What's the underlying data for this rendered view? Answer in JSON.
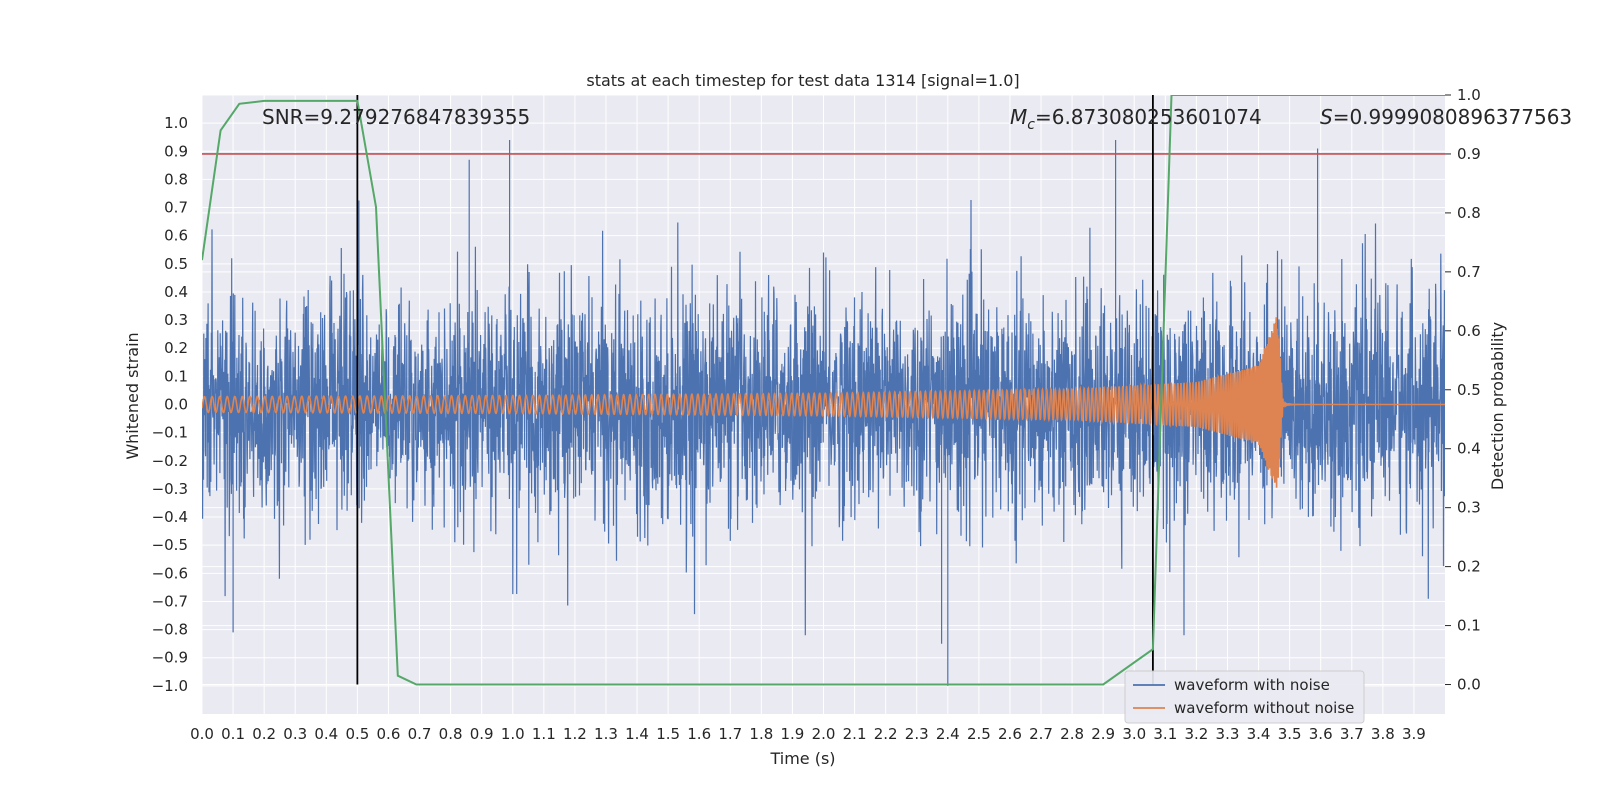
{
  "chart_data": {
    "type": "line",
    "title": "stats at each timestep for test data 1314 [signal=1.0]",
    "xlabel": "Time (s)",
    "ylabel": "Whitened strain",
    "ylabel_right": "Detection probability",
    "xlim": [
      0.0,
      4.0
    ],
    "ylim": [
      -1.1,
      1.1
    ],
    "ylim_right": [
      -0.05,
      1.0
    ],
    "x_ticks": [
      "0.0",
      "0.1",
      "0.2",
      "0.3",
      "0.4",
      "0.5",
      "0.6",
      "0.7",
      "0.8",
      "0.9",
      "1.0",
      "1.1",
      "1.2",
      "1.3",
      "1.4",
      "1.5",
      "1.6",
      "1.7",
      "1.8",
      "1.9",
      "2.0",
      "2.1",
      "2.2",
      "2.3",
      "2.4",
      "2.5",
      "2.6",
      "2.7",
      "2.8",
      "2.9",
      "3.0",
      "3.1",
      "3.2",
      "3.3",
      "3.4",
      "3.5",
      "3.6",
      "3.7",
      "3.8",
      "3.9"
    ],
    "y_ticks": [
      "1.0",
      "0.9",
      "0.8",
      "0.7",
      "0.6",
      "0.5",
      "0.4",
      "0.3",
      "0.2",
      "0.1",
      "0.0",
      "-0.1",
      "-0.2",
      "-0.3",
      "-0.4",
      "-0.5",
      "-0.6",
      "-0.7",
      "-0.8",
      "-0.9",
      "-1.0"
    ],
    "y_ticks_right": [
      "1.0",
      "0.9",
      "0.8",
      "0.7",
      "0.6",
      "0.5",
      "0.4",
      "0.3",
      "0.2",
      "0.1",
      "0.0"
    ],
    "annotations": {
      "snr": "SNR=9.279276847839355",
      "mc_symbol": "M",
      "mc_sub": "c",
      "mc_value": "=6.873080253601074",
      "s_symbol": "S",
      "s_value": "=0.9999080896377563"
    },
    "threshold_right": 0.9,
    "vertical_lines_x": [
      0.5,
      3.06
    ],
    "series": [
      {
        "name": "waveform with noise",
        "color": "#4c72b0",
        "axis": "left",
        "description": "Whitened noisy strain, amplitude mostly within +/-0.5 with spikes to about +/-0.9",
        "peaks": [
          {
            "x": 0.86,
            "y": 0.87
          },
          {
            "x": 0.99,
            "y": 0.94
          },
          {
            "x": 2.94,
            "y": 0.94
          },
          {
            "x": 3.59,
            "y": 0.91
          },
          {
            "x": 2.4,
            "y": -1.0
          },
          {
            "x": 2.38,
            "y": -0.85
          },
          {
            "x": 0.1,
            "y": -0.81
          }
        ]
      },
      {
        "name": "waveform without noise",
        "color": "#dd8452",
        "axis": "left",
        "description": "Chirp signal: small amplitude oscillation growing until merger near 3.46 s then ringdown to zero",
        "envelope": {
          "x": [
            0.0,
            1.0,
            2.0,
            2.8,
            3.2,
            3.4,
            3.46,
            3.48,
            4.0
          ],
          "amp": [
            0.028,
            0.032,
            0.04,
            0.055,
            0.08,
            0.14,
            0.32,
            0.01,
            0.0
          ]
        }
      },
      {
        "name": "detection probability",
        "color": "#55a868",
        "axis": "right",
        "x": [
          0.0,
          0.06,
          0.12,
          0.2,
          0.3,
          0.4,
          0.5,
          0.56,
          0.63,
          0.69,
          0.8,
          1.0,
          2.0,
          2.9,
          3.06,
          3.12,
          3.2,
          3.5,
          4.0
        ],
        "y": [
          0.72,
          0.94,
          0.985,
          0.99,
          0.99,
          0.99,
          0.99,
          0.81,
          0.015,
          0.0,
          0.0,
          0.0,
          0.0,
          0.0,
          0.06,
          1.0,
          1.0,
          1.0,
          1.0
        ]
      }
    ],
    "legend": [
      "waveform with noise",
      "waveform without noise"
    ],
    "legend_position": "bottom-right",
    "colors": {
      "background": "#eaeaf2",
      "grid": "#ffffff",
      "threshold": "#c44e52",
      "vline": "#000000"
    }
  }
}
